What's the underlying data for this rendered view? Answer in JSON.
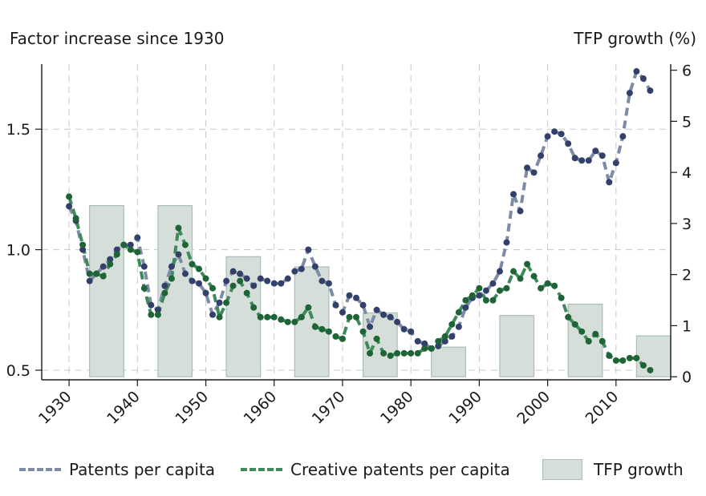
{
  "colors": {
    "patents": "#33406a",
    "patents_line": "#7d8ba6",
    "creative": "#1e6436",
    "creative_line": "#3f8a5a",
    "bar_fill": "#d5ded9",
    "bar_stroke": "#a9bfb6",
    "grid": "#c8c8c8",
    "axis": "#1a1a1a"
  },
  "chart_data": {
    "type": "line",
    "left_axis_title": "Factor increase since 1930",
    "right_axis_title": "TFP growth (%)",
    "x_ticks": [
      "1930",
      "1940",
      "1950",
      "1960",
      "1970",
      "1980",
      "1990",
      "2000",
      "2010"
    ],
    "y_left_ticks": [
      "0.5",
      "1.0",
      "1.5"
    ],
    "y_right_ticks": [
      "0",
      "1",
      "2",
      "3",
      "4",
      "5",
      "6"
    ],
    "xlim": [
      1926,
      2018
    ],
    "ylim_left": [
      0.46,
      1.77
    ],
    "ylim_right": [
      -0.06,
      6.12
    ],
    "series": [
      {
        "name": "Patents per capita",
        "axis": "left",
        "points": [
          [
            1930,
            1.18
          ],
          [
            1931,
            1.12
          ],
          [
            1932,
            1.0
          ],
          [
            1933,
            0.87
          ],
          [
            1934,
            0.9
          ],
          [
            1935,
            0.93
          ],
          [
            1936,
            0.96
          ],
          [
            1937,
            1.0
          ],
          [
            1938,
            1.02
          ],
          [
            1939,
            1.02
          ],
          [
            1940,
            1.05
          ],
          [
            1941,
            0.93
          ],
          [
            1942,
            0.77
          ],
          [
            1943,
            0.75
          ],
          [
            1944,
            0.85
          ],
          [
            1945,
            0.93
          ],
          [
            1946,
            0.98
          ],
          [
            1947,
            0.9
          ],
          [
            1948,
            0.87
          ],
          [
            1949,
            0.86
          ],
          [
            1950,
            0.82
          ],
          [
            1951,
            0.73
          ],
          [
            1952,
            0.78
          ],
          [
            1953,
            0.87
          ],
          [
            1954,
            0.91
          ],
          [
            1955,
            0.9
          ],
          [
            1956,
            0.88
          ],
          [
            1957,
            0.85
          ],
          [
            1958,
            0.88
          ],
          [
            1959,
            0.87
          ],
          [
            1960,
            0.86
          ],
          [
            1961,
            0.86
          ],
          [
            1962,
            0.88
          ],
          [
            1963,
            0.91
          ],
          [
            1964,
            0.92
          ],
          [
            1965,
            1.0
          ],
          [
            1966,
            0.93
          ],
          [
            1967,
            0.87
          ],
          [
            1968,
            0.86
          ],
          [
            1969,
            0.77
          ],
          [
            1970,
            0.74
          ],
          [
            1971,
            0.81
          ],
          [
            1972,
            0.8
          ],
          [
            1973,
            0.77
          ],
          [
            1974,
            0.68
          ],
          [
            1975,
            0.75
          ],
          [
            1976,
            0.73
          ],
          [
            1977,
            0.72
          ],
          [
            1978,
            0.7
          ],
          [
            1979,
            0.67
          ],
          [
            1980,
            0.66
          ],
          [
            1981,
            0.62
          ],
          [
            1982,
            0.61
          ],
          [
            1983,
            0.59
          ],
          [
            1984,
            0.6
          ],
          [
            1985,
            0.62
          ],
          [
            1986,
            0.64
          ],
          [
            1987,
            0.68
          ],
          [
            1988,
            0.76
          ],
          [
            1989,
            0.8
          ],
          [
            1990,
            0.81
          ],
          [
            1991,
            0.83
          ],
          [
            1992,
            0.86
          ],
          [
            1993,
            0.91
          ],
          [
            1994,
            1.03
          ],
          [
            1995,
            1.23
          ],
          [
            1996,
            1.16
          ],
          [
            1997,
            1.34
          ],
          [
            1998,
            1.32
          ],
          [
            1999,
            1.39
          ],
          [
            2000,
            1.47
          ],
          [
            2001,
            1.49
          ],
          [
            2002,
            1.48
          ],
          [
            2003,
            1.44
          ],
          [
            2004,
            1.38
          ],
          [
            2005,
            1.37
          ],
          [
            2006,
            1.37
          ],
          [
            2007,
            1.41
          ],
          [
            2008,
            1.39
          ],
          [
            2009,
            1.28
          ],
          [
            2010,
            1.36
          ],
          [
            2011,
            1.47
          ],
          [
            2012,
            1.65
          ],
          [
            2013,
            1.74
          ],
          [
            2014,
            1.71
          ],
          [
            2015,
            1.66
          ]
        ]
      },
      {
        "name": "Creative patents per capita",
        "axis": "left",
        "points": [
          [
            1930,
            1.22
          ],
          [
            1931,
            1.13
          ],
          [
            1932,
            1.02
          ],
          [
            1933,
            0.9
          ],
          [
            1934,
            0.9
          ],
          [
            1935,
            0.89
          ],
          [
            1936,
            0.94
          ],
          [
            1937,
            0.98
          ],
          [
            1938,
            1.02
          ],
          [
            1939,
            1.0
          ],
          [
            1940,
            0.99
          ],
          [
            1941,
            0.84
          ],
          [
            1942,
            0.73
          ],
          [
            1943,
            0.73
          ],
          [
            1944,
            0.82
          ],
          [
            1945,
            0.88
          ],
          [
            1946,
            1.09
          ],
          [
            1947,
            1.02
          ],
          [
            1948,
            0.94
          ],
          [
            1949,
            0.92
          ],
          [
            1950,
            0.88
          ],
          [
            1951,
            0.84
          ],
          [
            1952,
            0.72
          ],
          [
            1953,
            0.78
          ],
          [
            1954,
            0.85
          ],
          [
            1955,
            0.87
          ],
          [
            1956,
            0.82
          ],
          [
            1957,
            0.76
          ],
          [
            1958,
            0.72
          ],
          [
            1959,
            0.72
          ],
          [
            1960,
            0.72
          ],
          [
            1961,
            0.71
          ],
          [
            1962,
            0.7
          ],
          [
            1963,
            0.7
          ],
          [
            1964,
            0.72
          ],
          [
            1965,
            0.76
          ],
          [
            1966,
            0.68
          ],
          [
            1967,
            0.67
          ],
          [
            1968,
            0.66
          ],
          [
            1969,
            0.64
          ],
          [
            1970,
            0.63
          ],
          [
            1971,
            0.72
          ],
          [
            1972,
            0.72
          ],
          [
            1973,
            0.66
          ],
          [
            1974,
            0.57
          ],
          [
            1975,
            0.63
          ],
          [
            1976,
            0.57
          ],
          [
            1977,
            0.56
          ],
          [
            1978,
            0.57
          ],
          [
            1979,
            0.57
          ],
          [
            1980,
            0.57
          ],
          [
            1981,
            0.57
          ],
          [
            1982,
            0.59
          ],
          [
            1983,
            0.59
          ],
          [
            1984,
            0.62
          ],
          [
            1985,
            0.64
          ],
          [
            1986,
            0.69
          ],
          [
            1987,
            0.74
          ],
          [
            1988,
            0.79
          ],
          [
            1989,
            0.81
          ],
          [
            1990,
            0.84
          ],
          [
            1991,
            0.79
          ],
          [
            1992,
            0.79
          ],
          [
            1993,
            0.83
          ],
          [
            1994,
            0.84
          ],
          [
            1995,
            0.91
          ],
          [
            1996,
            0.88
          ],
          [
            1997,
            0.94
          ],
          [
            1998,
            0.89
          ],
          [
            1999,
            0.84
          ],
          [
            2000,
            0.86
          ],
          [
            2001,
            0.85
          ],
          [
            2002,
            0.8
          ],
          [
            2003,
            0.72
          ],
          [
            2004,
            0.69
          ],
          [
            2005,
            0.66
          ],
          [
            2006,
            0.62
          ],
          [
            2007,
            0.65
          ],
          [
            2008,
            0.62
          ],
          [
            2009,
            0.56
          ],
          [
            2010,
            0.54
          ],
          [
            2011,
            0.54
          ],
          [
            2012,
            0.55
          ],
          [
            2013,
            0.55
          ],
          [
            2014,
            0.52
          ],
          [
            2015,
            0.5
          ]
        ]
      },
      {
        "name": "TFP growth",
        "axis": "right",
        "type": "bar",
        "bars": [
          {
            "start": 1933,
            "end": 1938,
            "value": 3.35
          },
          {
            "start": 1943,
            "end": 1948,
            "value": 3.35
          },
          {
            "start": 1953,
            "end": 1958,
            "value": 2.35
          },
          {
            "start": 1963,
            "end": 1968,
            "value": 2.15
          },
          {
            "start": 1973,
            "end": 1978,
            "value": 1.25
          },
          {
            "start": 1983,
            "end": 1988,
            "value": 0.58
          },
          {
            "start": 1993,
            "end": 1998,
            "value": 1.2
          },
          {
            "start": 2003,
            "end": 2008,
            "value": 1.42
          },
          {
            "start": 2013,
            "end": 2018,
            "value": 0.8
          }
        ]
      }
    ],
    "legend": [
      "Patents per capita",
      "Creative patents per capita",
      "TFP growth"
    ]
  }
}
